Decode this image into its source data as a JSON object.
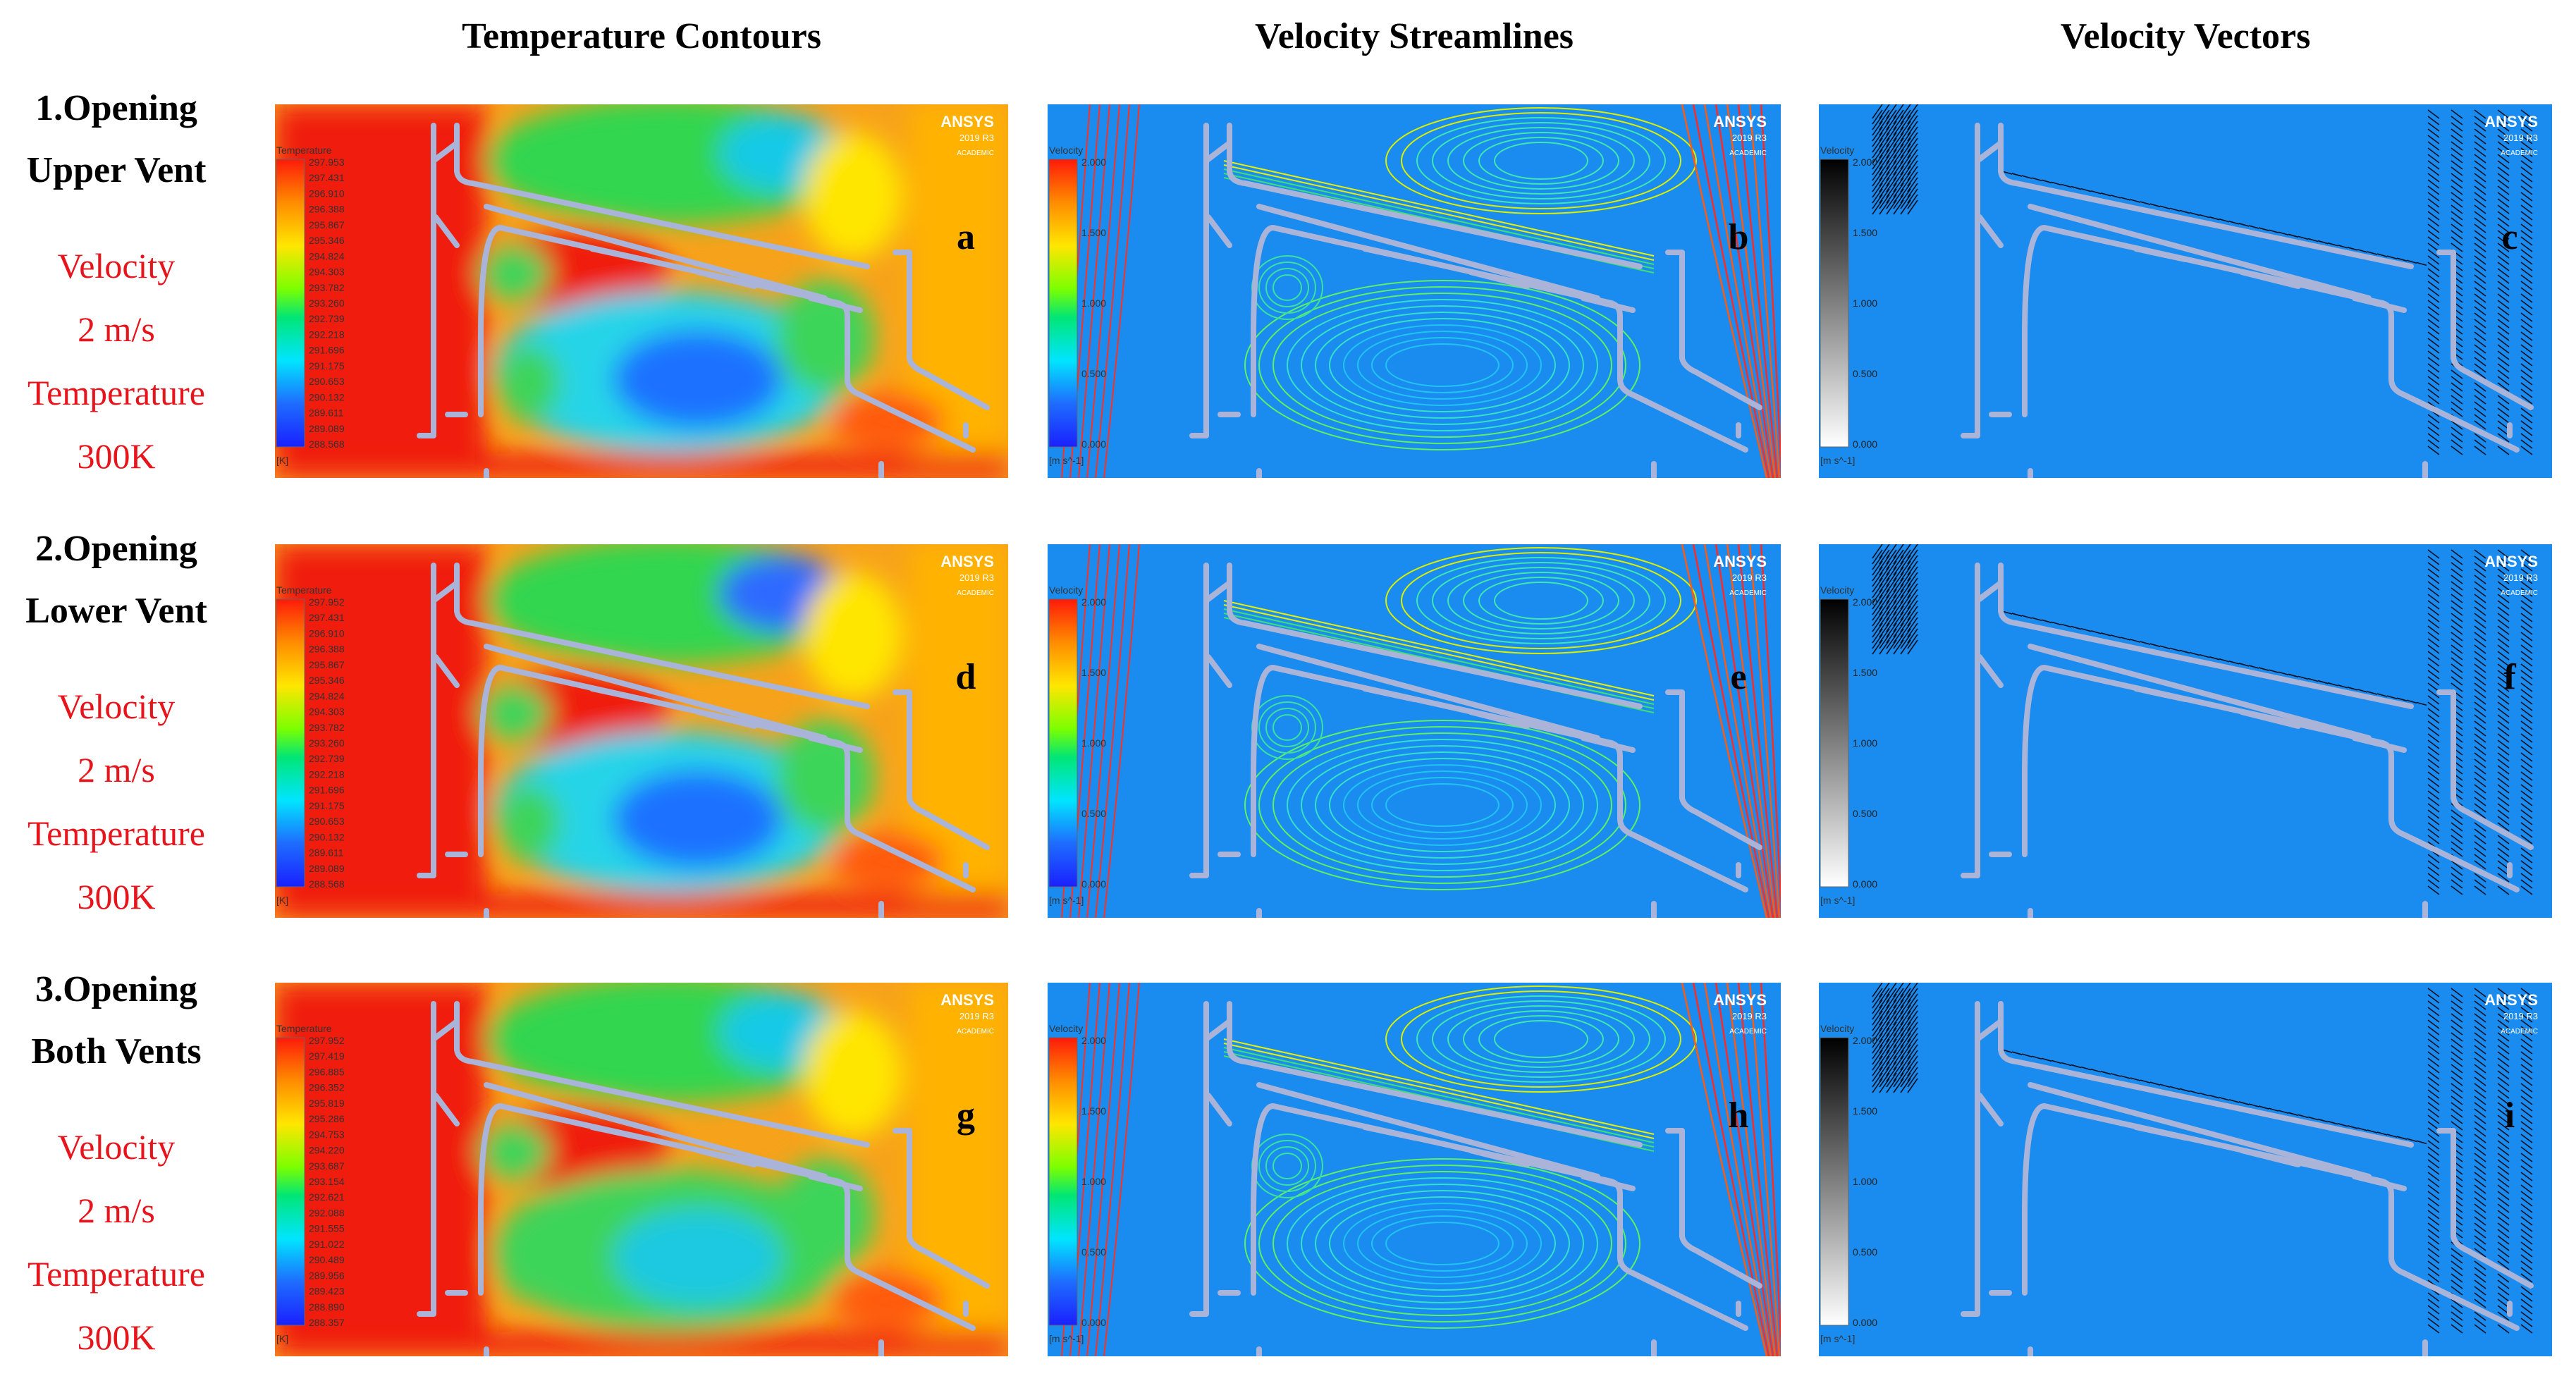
{
  "columns": [
    "Temperature Contours",
    "Velocity Streamlines",
    "Velocity Vectors"
  ],
  "rows": [
    {
      "title1": "1.Opening",
      "title2": "Upper Vent",
      "velocity": "Velocity",
      "velocity_value": "2 m/s",
      "temperature": "Temperature",
      "temperature_value": "300K",
      "letters": [
        "a",
        "b",
        "c"
      ],
      "temp_ticks": [
        "297.953",
        "297.431",
        "296.910",
        "296.388",
        "295.867",
        "295.346",
        "294.824",
        "294.303",
        "293.782",
        "293.260",
        "292.739",
        "292.218",
        "291.696",
        "291.175",
        "290.653",
        "290.132",
        "289.611",
        "289.089",
        "288.568"
      ]
    },
    {
      "title1": "2.Opening",
      "title2": "Lower Vent",
      "velocity": "Velocity",
      "velocity_value": "2 m/s",
      "temperature": "Temperature",
      "temperature_value": "300K",
      "letters": [
        "d",
        "e",
        "f"
      ],
      "temp_ticks": [
        "297.952",
        "297.431",
        "296.910",
        "296.388",
        "295.867",
        "295.346",
        "294.824",
        "294.303",
        "293.782",
        "293.260",
        "292.739",
        "292.218",
        "291.696",
        "291.175",
        "290.653",
        "290.132",
        "289.611",
        "289.089",
        "288.568"
      ]
    },
    {
      "title1": "3.Opening",
      "title2": "Both Vents",
      "velocity": "Velocity",
      "velocity_value": "2 m/s",
      "temperature": "Temperature",
      "temperature_value": "300K",
      "letters": [
        "g",
        "h",
        "i"
      ],
      "temp_ticks": [
        "297.952",
        "297.419",
        "296.885",
        "296.352",
        "295.819",
        "295.286",
        "294.753",
        "294.220",
        "293.687",
        "293.154",
        "292.621",
        "292.088",
        "291.555",
        "291.022",
        "290.489",
        "289.956",
        "289.423",
        "288.890",
        "288.357"
      ]
    }
  ],
  "legend": {
    "temperature_label": "Temperature",
    "temperature_unit": "[K]",
    "velocity_label": "Velocity",
    "velocity_unit": "[m s^-1]",
    "velocity_ticks": [
      "2.000",
      "1.500",
      "1.000",
      "0.500",
      "0.000"
    ]
  },
  "watermark": {
    "brand": "ANSYS",
    "version": "2019 R3",
    "edition": "ACADEMIC"
  },
  "colors": {
    "background_blue": "#1a8cf0",
    "hot_red": "#f01a10",
    "row_label_red": "#e8141c",
    "wall_gray": "#a9b4d8"
  }
}
